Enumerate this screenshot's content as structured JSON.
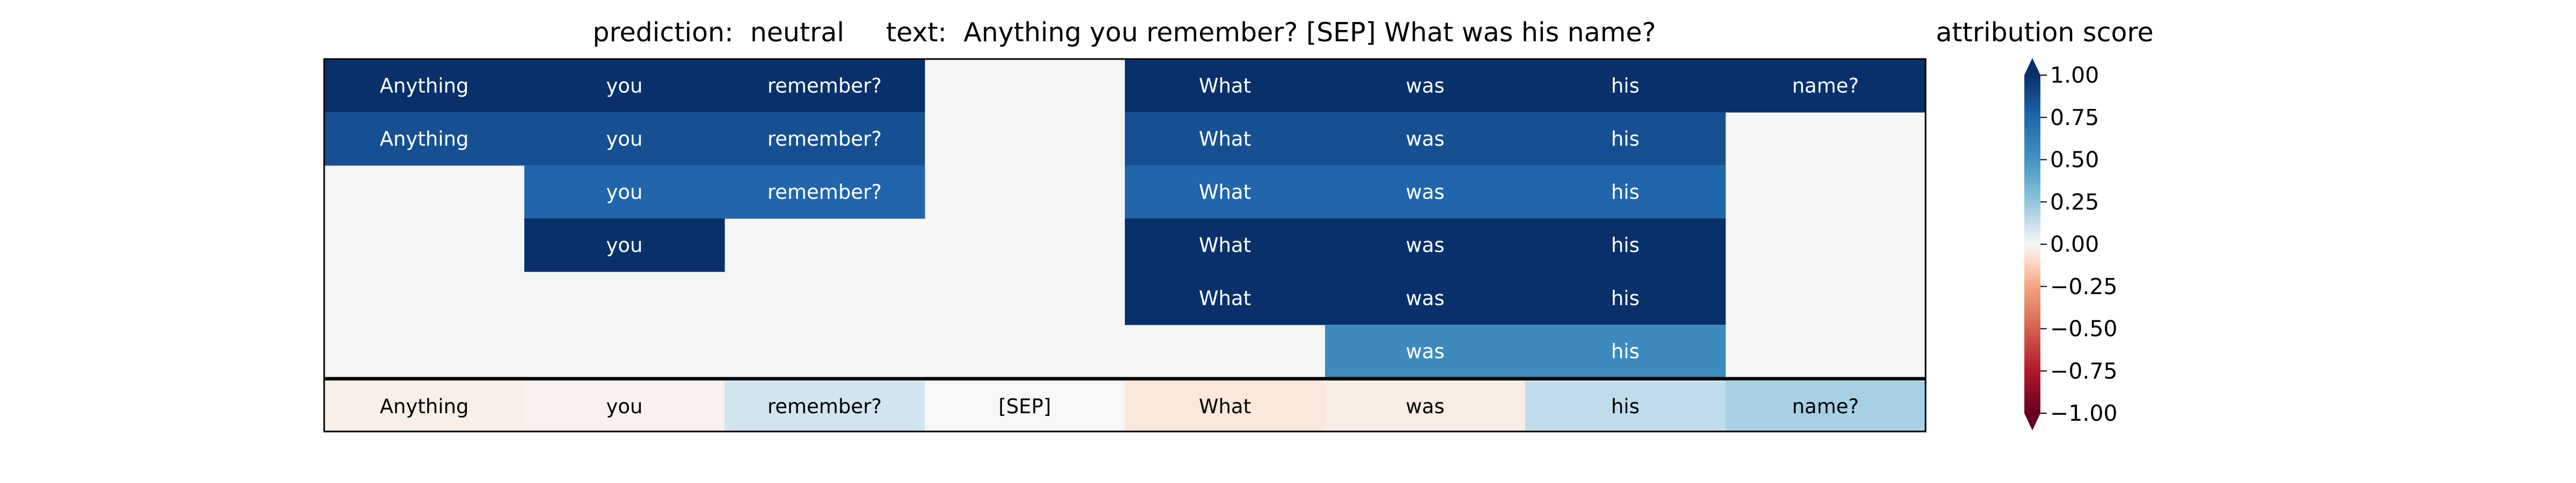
{
  "chart_data": {
    "type": "heatmap",
    "title": "prediction:  neutral     text:  Anything you remember? [SEP] What was his name?",
    "colorbar": {
      "label": "attribution score",
      "ticks": [
        "1.00",
        "0.75",
        "0.50",
        "0.25",
        "0.00",
        "−0.25",
        "−0.50",
        "−0.75",
        "−1.00"
      ],
      "tick_values": [
        1.0,
        0.75,
        0.5,
        0.25,
        0.0,
        -0.25,
        -0.5,
        -0.75,
        -1.0
      ],
      "range": [
        -1,
        1
      ],
      "extend": "both"
    },
    "tokens": [
      "Anything",
      "you",
      "remember?",
      "[SEP]",
      "What",
      "was",
      "his",
      "name?"
    ],
    "rows": [
      {
        "values": [
          1.0,
          1.0,
          1.0,
          null,
          1.0,
          1.0,
          1.0,
          1.0
        ],
        "labels": [
          "Anything",
          "you",
          "remember?",
          "",
          "What",
          "was",
          "his",
          "name?"
        ]
      },
      {
        "values": [
          0.85,
          0.85,
          0.85,
          null,
          0.85,
          0.85,
          0.85,
          null
        ],
        "labels": [
          "Anything",
          "you",
          "remember?",
          "",
          "What",
          "was",
          "his",
          ""
        ]
      },
      {
        "values": [
          null,
          0.75,
          0.75,
          null,
          0.75,
          0.75,
          0.75,
          null
        ],
        "labels": [
          "",
          "you",
          "remember?",
          "",
          "What",
          "was",
          "his",
          ""
        ]
      },
      {
        "values": [
          null,
          1.0,
          null,
          null,
          1.0,
          1.0,
          1.0,
          null
        ],
        "labels": [
          "",
          "you",
          "",
          "",
          "What",
          "was",
          "his",
          ""
        ]
      },
      {
        "values": [
          null,
          null,
          null,
          null,
          1.0,
          1.0,
          1.0,
          null
        ],
        "labels": [
          "",
          "",
          "",
          "",
          "What",
          "was",
          "his",
          ""
        ]
      },
      {
        "values": [
          null,
          null,
          null,
          null,
          null,
          0.55,
          0.55,
          null
        ],
        "labels": [
          "",
          "",
          "",
          "",
          "",
          "was",
          "his",
          ""
        ]
      }
    ],
    "attribution_row": {
      "values": [
        -0.03,
        -0.02,
        0.1,
        0.0,
        -0.06,
        -0.04,
        0.14,
        0.2
      ],
      "labels": [
        "Anything",
        "you",
        "remember?",
        "[SEP]",
        "What",
        "was",
        "his",
        "name?"
      ]
    },
    "empty_color": "#f4f6f6"
  }
}
